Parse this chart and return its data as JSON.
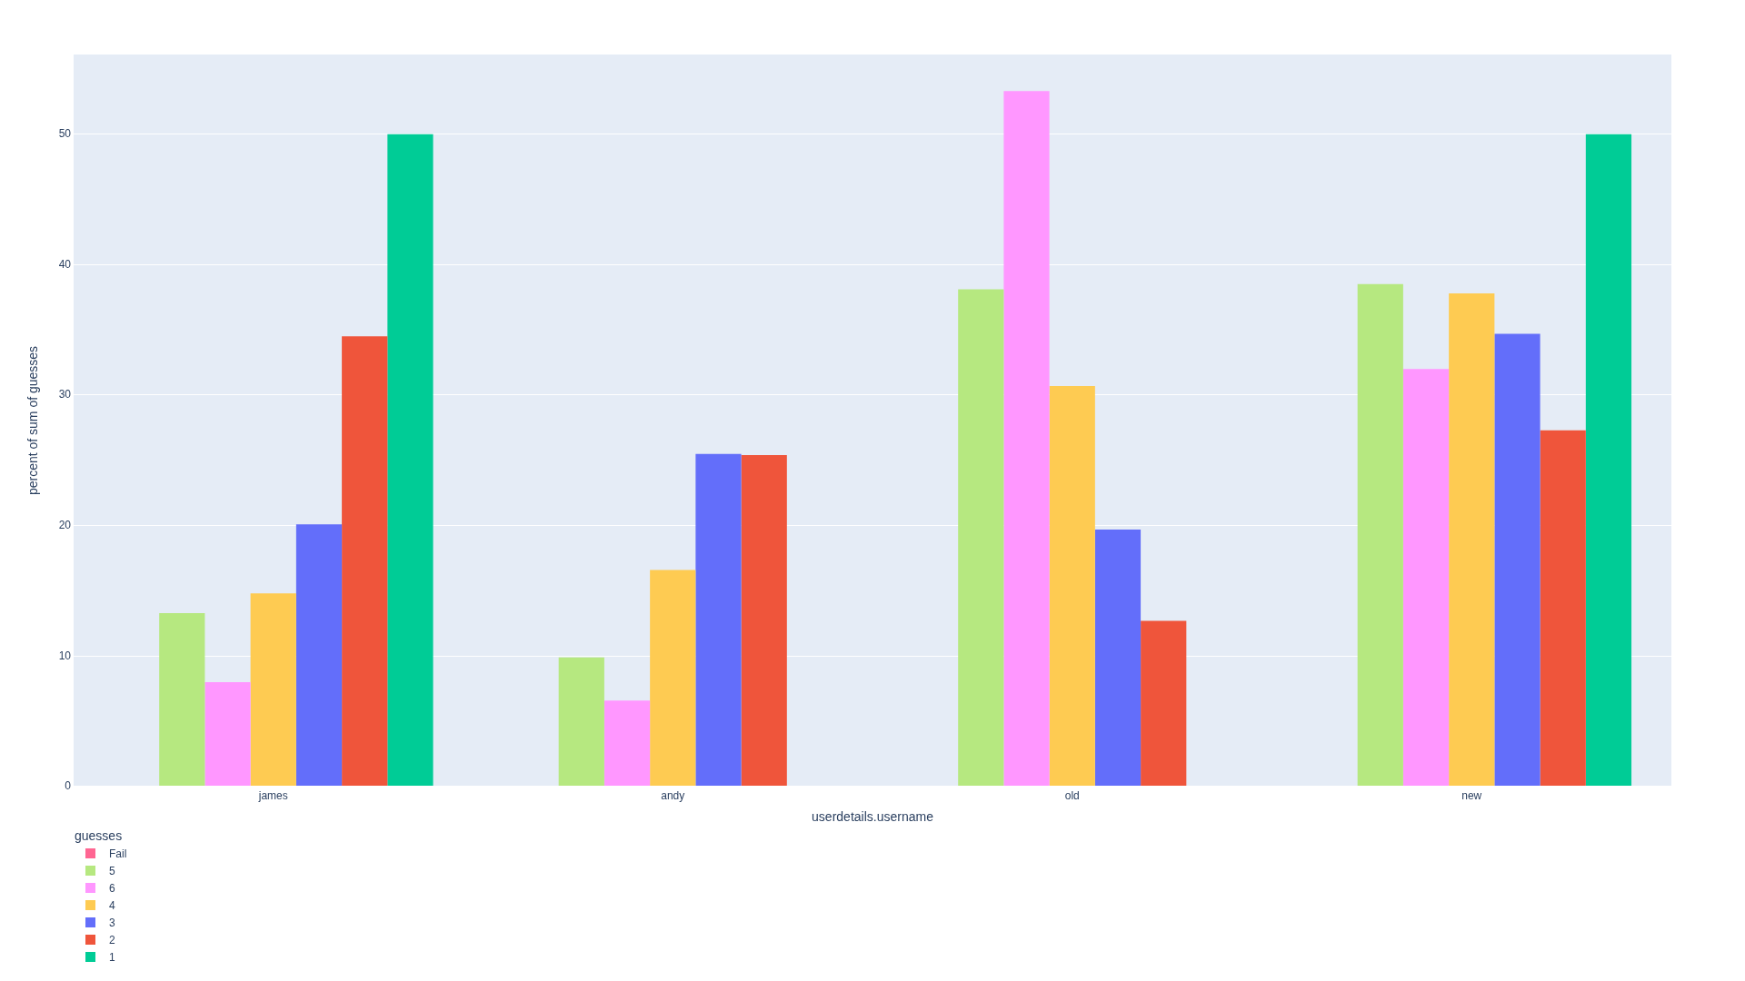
{
  "chart_data": {
    "type": "bar",
    "xlabel": "userdetails.username",
    "ylabel": "percent of sum of guesses",
    "legend_title": "guesses",
    "categories": [
      "james",
      "andy",
      "old",
      "new"
    ],
    "series": [
      {
        "name": "Fail",
        "color": "#ff6692",
        "values": [
          null,
          null,
          null,
          null
        ]
      },
      {
        "name": "5",
        "color": "#b6e880",
        "values": [
          13.3,
          9.9,
          38.1,
          38.5
        ]
      },
      {
        "name": "6",
        "color": "#ff97ff",
        "values": [
          8.0,
          6.6,
          53.3,
          32.0
        ]
      },
      {
        "name": "4",
        "color": "#fecb52",
        "values": [
          14.8,
          16.6,
          30.7,
          37.8
        ]
      },
      {
        "name": "3",
        "color": "#636efa",
        "values": [
          20.1,
          25.5,
          19.7,
          34.7
        ]
      },
      {
        "name": "2",
        "color": "#ef553b",
        "values": [
          34.5,
          25.4,
          12.7,
          27.3
        ]
      },
      {
        "name": "1",
        "color": "#00cc96",
        "values": [
          50,
          null,
          null,
          50
        ]
      }
    ],
    "ylim": [
      0,
      56.1
    ],
    "yticks": [
      0,
      10,
      20,
      30,
      40,
      50
    ],
    "grid": "y",
    "legend": "bottom left"
  }
}
